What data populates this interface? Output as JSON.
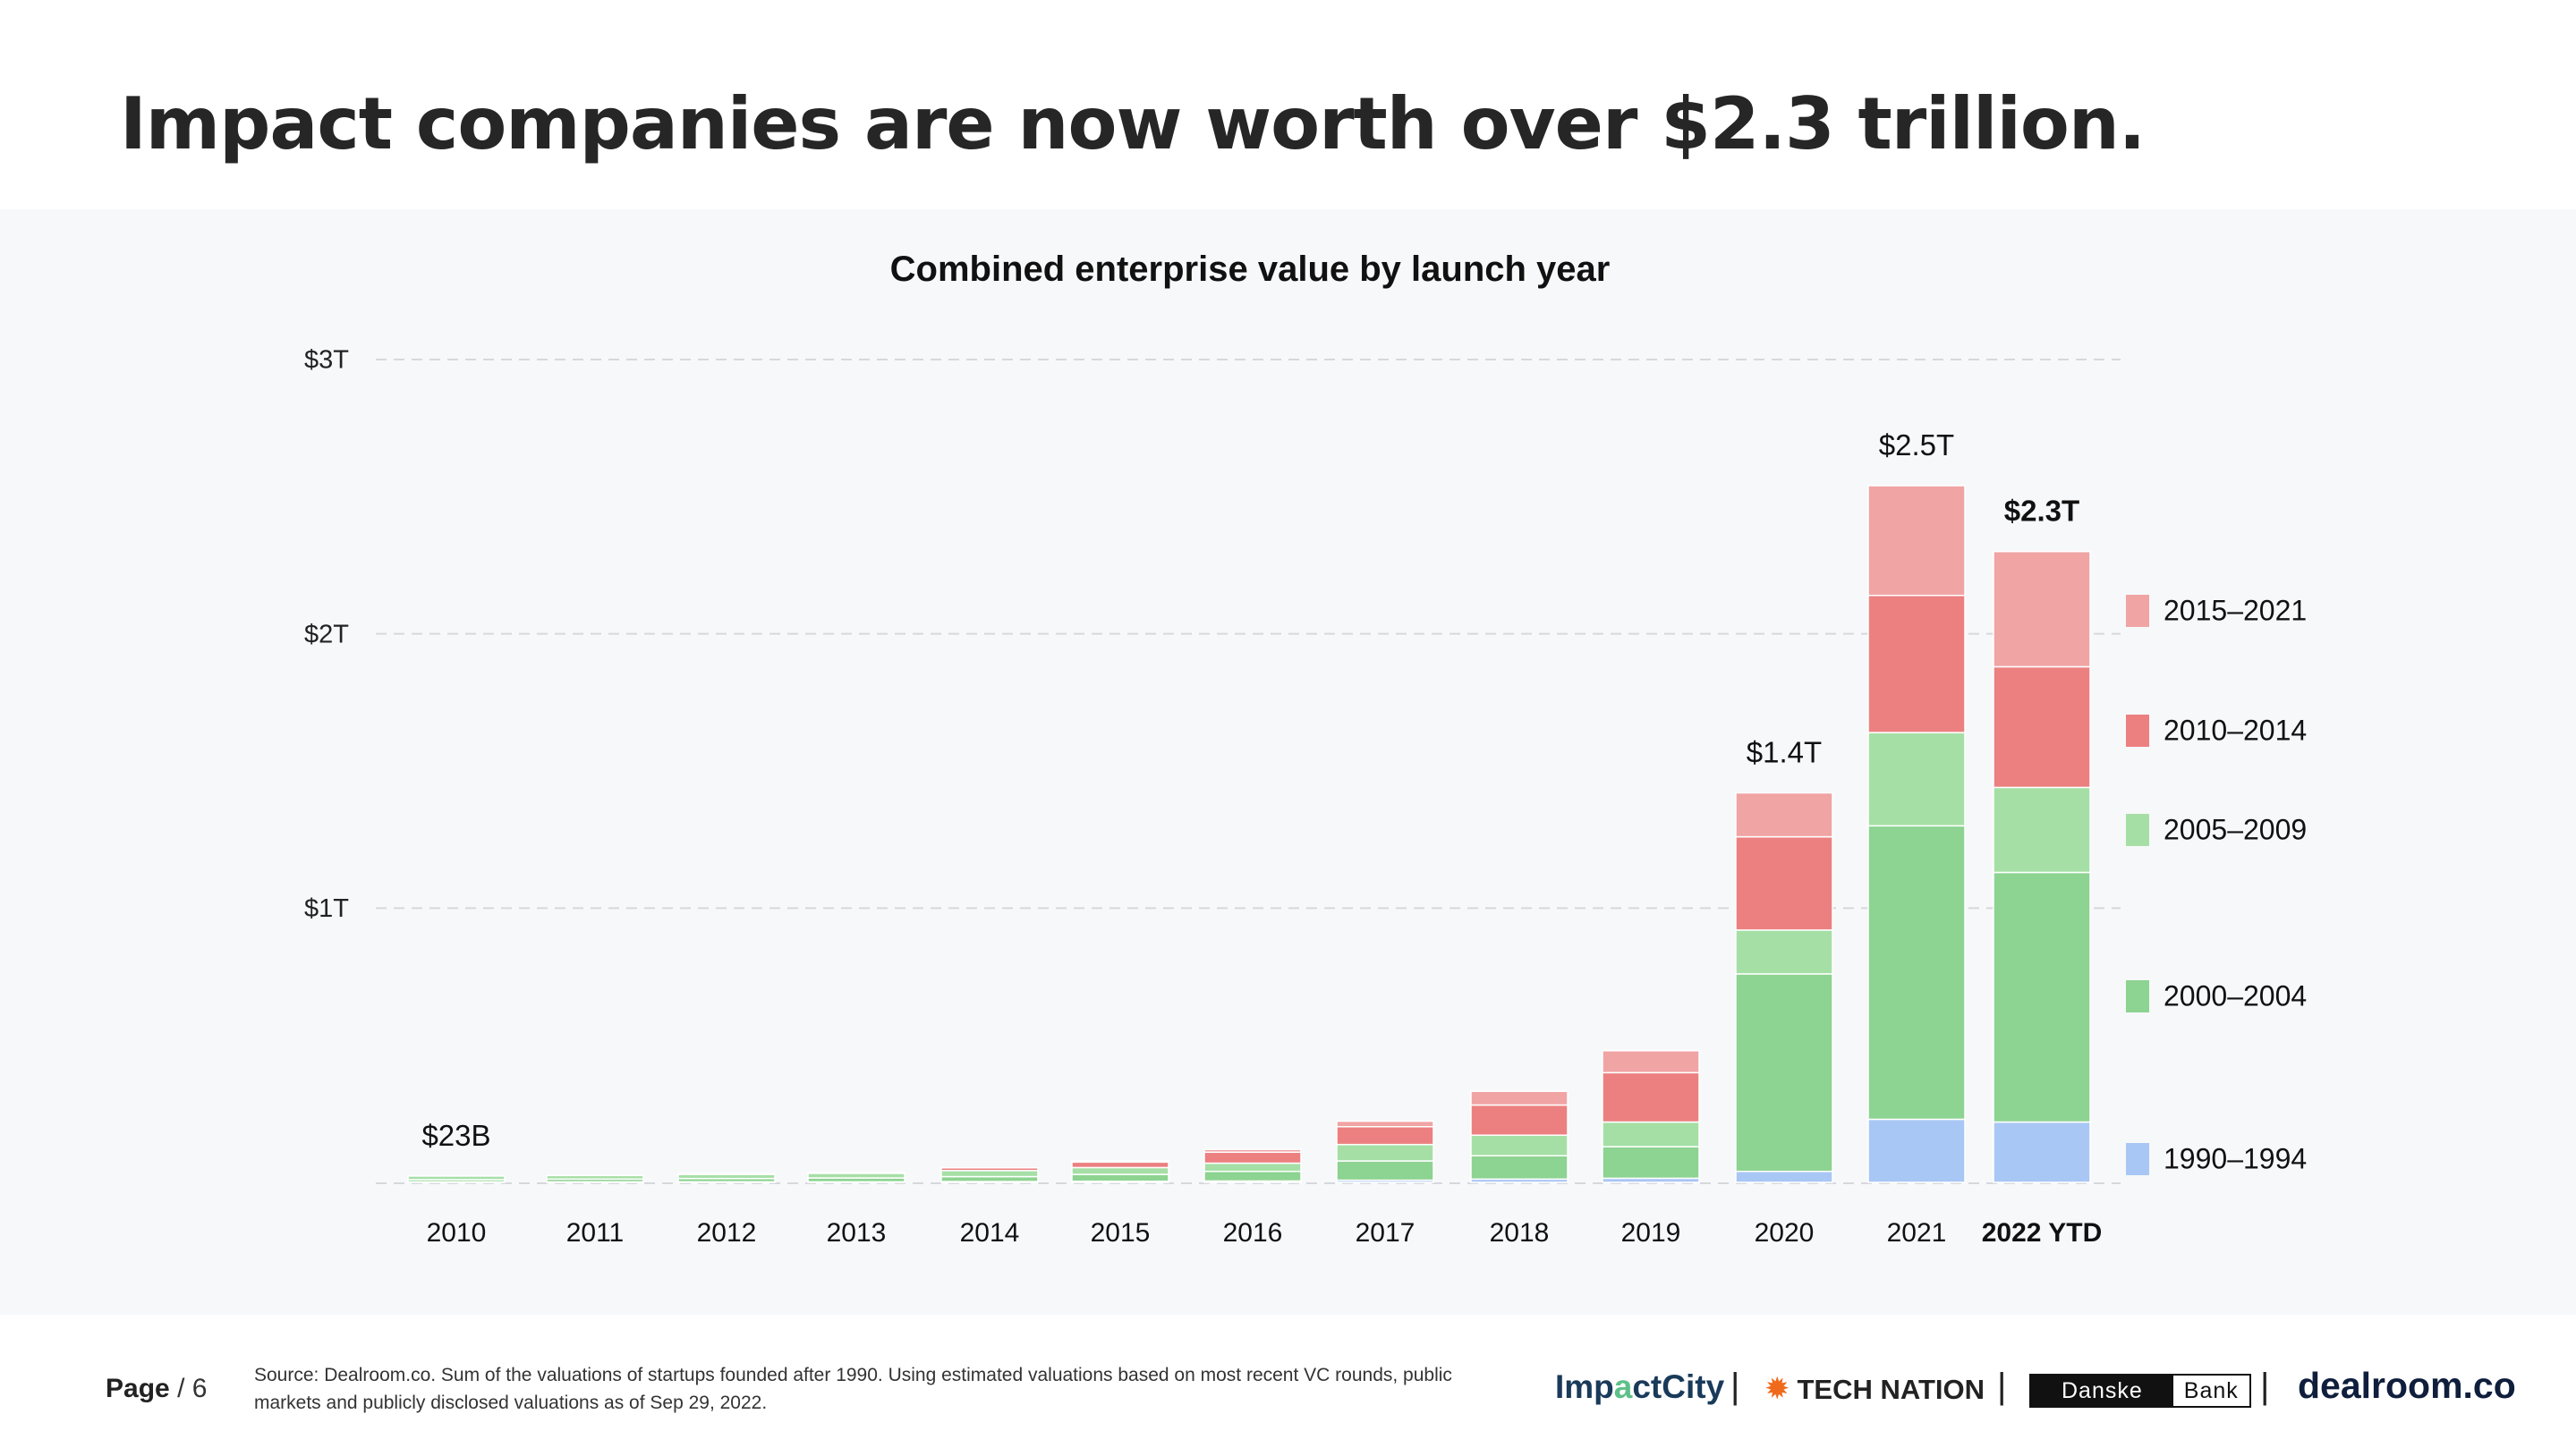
{
  "headline": "Impact companies are now worth over $2.3 trillion.",
  "chart_data": {
    "type": "bar",
    "stacked": true,
    "title": "Combined enterprise value by launch year",
    "categories": [
      "2010",
      "2011",
      "2012",
      "2013",
      "2014",
      "2015",
      "2016",
      "2017",
      "2018",
      "2019",
      "2020",
      "2021",
      "2022 YTD"
    ],
    "y_unit": "trillion USD",
    "ylim": [
      0,
      3
    ],
    "yticks": [
      {
        "value": 1,
        "label": "$1T"
      },
      {
        "value": 2,
        "label": "$2T"
      },
      {
        "value": 3,
        "label": "$3T"
      }
    ],
    "grid": "horizontal dashed",
    "legend": "right",
    "series": [
      {
        "name": "1990–1994",
        "color": "#a9c7f5",
        "values": [
          0.002,
          0.002,
          0.002,
          0.002,
          0.003,
          0.004,
          0.005,
          0.008,
          0.012,
          0.015,
          0.04,
          0.23,
          0.22
        ]
      },
      {
        "name": "2000–2004",
        "color": "#8dd391",
        "values": [
          0.008,
          0.01,
          0.012,
          0.014,
          0.018,
          0.025,
          0.035,
          0.07,
          0.085,
          0.115,
          0.72,
          1.07,
          0.91
        ]
      },
      {
        "name": "2005–2009",
        "color": "#a6dfa6",
        "values": [
          0.013,
          0.013,
          0.015,
          0.017,
          0.022,
          0.025,
          0.03,
          0.06,
          0.075,
          0.09,
          0.16,
          0.34,
          0.31
        ]
      },
      {
        "name": "2010–2014",
        "color": "#ec8080",
        "values": [
          0,
          0,
          0.002,
          0.004,
          0.01,
          0.02,
          0.04,
          0.065,
          0.11,
          0.18,
          0.34,
          0.5,
          0.44
        ]
      },
      {
        "name": "2015–2021",
        "color": "#f0a4a4",
        "values": [
          0,
          0,
          0,
          0,
          0,
          0.005,
          0.01,
          0.02,
          0.05,
          0.08,
          0.16,
          0.4,
          0.42
        ]
      }
    ],
    "totals_labels": [
      {
        "category": "2010",
        "label": "$23B"
      },
      {
        "category": "2020",
        "label": "$1.4T"
      },
      {
        "category": "2021",
        "label": "$2.5T"
      },
      {
        "category": "2022 YTD",
        "label": "$2.3T",
        "bold": true
      }
    ],
    "legend_order": [
      "2015–2021",
      "2010–2014",
      "2005–2009",
      "2000–2004",
      "1990–1994"
    ]
  },
  "footer": {
    "page_label": "Page",
    "page_number": "/ 6",
    "source": "Source: Dealroom.co. Sum of the valuations of startups founded after 1990. Using estimated valuations based on most recent VC rounds, public markets and publicly disclosed valuations as of Sep 29, 2022.",
    "logos": {
      "impactcity_a": "Imp",
      "impactcity_b": "a",
      "impactcity_c": "ctCity",
      "technation": "TECH NATION",
      "danske_1": "Danske",
      "danske_2": "Bank",
      "dealroom": "dealroom.co"
    },
    "separator": "|",
    "icons": {
      "technation": "sun-burst-icon"
    }
  }
}
